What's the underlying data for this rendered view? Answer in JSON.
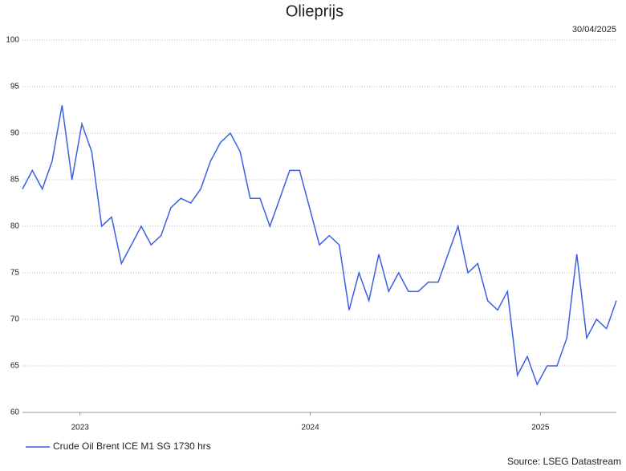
{
  "chart_data": {
    "type": "line",
    "title": "Olieprijs",
    "subtitle": "30/04/2025",
    "source": "Source: LSEG Datastream",
    "x": [
      2022.75,
      2022.793,
      2022.836,
      2022.879,
      2022.922,
      2022.965,
      2023.008,
      2023.051,
      2023.094,
      2023.137,
      2023.18,
      2023.223,
      2023.266,
      2023.309,
      2023.352,
      2023.395,
      2023.438,
      2023.481,
      2023.524,
      2023.567,
      2023.61,
      2023.653,
      2023.696,
      2023.739,
      2023.782,
      2023.825,
      2023.868,
      2023.911,
      2023.954,
      2023.997,
      2024.04,
      2024.083,
      2024.126,
      2024.169,
      2024.212,
      2024.255,
      2024.298,
      2024.341,
      2024.384,
      2024.427,
      2024.47,
      2024.513,
      2024.556,
      2024.599,
      2024.642,
      2024.685,
      2024.728,
      2024.771,
      2024.814,
      2024.857,
      2024.9,
      2024.943,
      2024.986,
      2025.029,
      2025.072,
      2025.115,
      2025.158,
      2025.201,
      2025.244,
      2025.287,
      2025.33
    ],
    "series": [
      {
        "name": "Crude Oil Brent ICE M1 SG 1730 hrs",
        "color": "#3b5fe2",
        "values": [
          84,
          86,
          84,
          87,
          93,
          85,
          91,
          88,
          80,
          81,
          76,
          78,
          80,
          78,
          79,
          82,
          83,
          82.5,
          84,
          87,
          89,
          90,
          88,
          83,
          83,
          80,
          83,
          86,
          86,
          82,
          78,
          79,
          78,
          71,
          75,
          72,
          77,
          73,
          75,
          73,
          73,
          74,
          74,
          77,
          80,
          75,
          76,
          72,
          71,
          73,
          64,
          66,
          63,
          65,
          65,
          68,
          77,
          68,
          70,
          69,
          72
        ]
      }
    ],
    "xlim": [
      2022.75,
      2025.33
    ],
    "xticks": [
      2023,
      2024,
      2025
    ],
    "ylim": [
      60,
      100
    ],
    "yticks": [
      60,
      65,
      70,
      75,
      80,
      85,
      90,
      95,
      100
    ],
    "grid": true
  }
}
